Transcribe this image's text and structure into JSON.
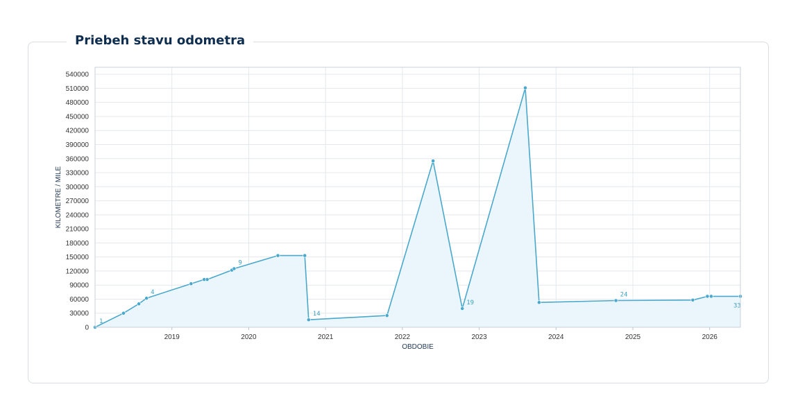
{
  "panel": {
    "title": "Priebeh stavu odometra"
  },
  "colors": {
    "line": "#4aa8cc",
    "fill": "#eaf6fb",
    "grid": "#e4e8ec",
    "label": "#3aa0c0"
  },
  "chart_data": {
    "type": "line",
    "title": "",
    "xlabel": "OBDOBIE",
    "ylabel": "KILOMETRE / MILE",
    "xlim": [
      2018.0,
      2026.4
    ],
    "ylim": [
      0,
      555000
    ],
    "y_ticks": [
      0,
      30000,
      60000,
      90000,
      120000,
      150000,
      180000,
      210000,
      240000,
      270000,
      300000,
      330000,
      360000,
      390000,
      420000,
      450000,
      480000,
      510000,
      540000
    ],
    "x_ticks": [
      "2019",
      "2020",
      "2021",
      "2022",
      "2023",
      "2024",
      "2025",
      "2026"
    ],
    "grid": true,
    "area_fill": true,
    "x": [
      2018.0,
      2018.37,
      2018.57,
      2018.67,
      2019.25,
      2019.42,
      2019.46,
      2019.78,
      2019.81,
      2020.38,
      2020.73,
      2020.78,
      2021.8,
      2022.4,
      2022.78,
      2023.6,
      2023.78,
      2024.78,
      2025.78,
      2025.97,
      2026.02,
      2026.4
    ],
    "values": [
      0,
      30000,
      50000,
      62000,
      93000,
      102000,
      102000,
      122000,
      125000,
      153000,
      153000,
      16000,
      25000,
      355000,
      40000,
      511000,
      53000,
      57000,
      58000,
      66000,
      66000,
      66000
    ],
    "point_labels": [
      {
        "index": 0,
        "text": "1"
      },
      {
        "index": 3,
        "text": "4"
      },
      {
        "index": 8,
        "text": "9"
      },
      {
        "index": 11,
        "text": "14"
      },
      {
        "index": 14,
        "text": "19"
      },
      {
        "index": 17,
        "text": "24"
      },
      {
        "index": 21,
        "text": "33"
      }
    ]
  }
}
